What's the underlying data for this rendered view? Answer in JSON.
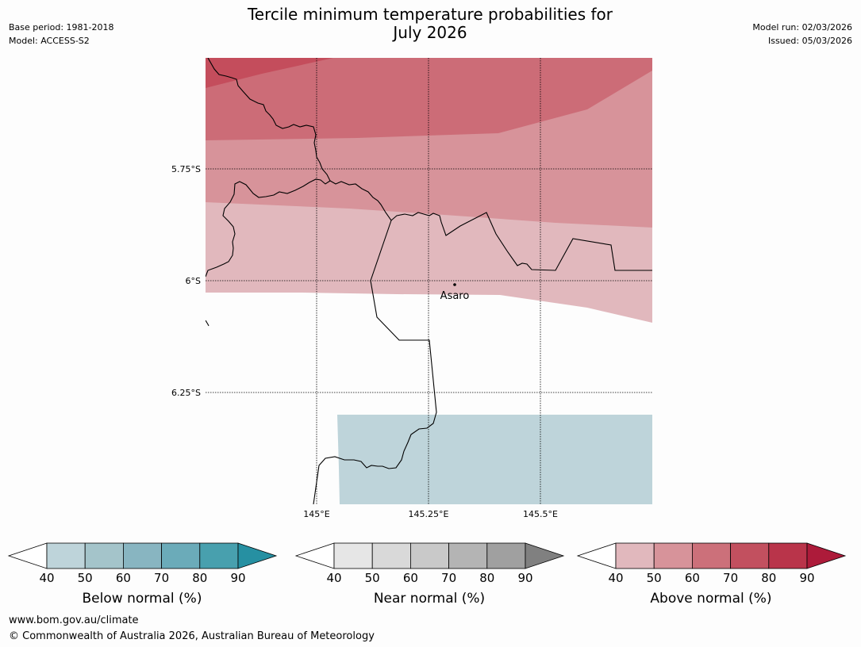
{
  "title_line1": "Tercile minimum temperature probabilities for",
  "title_line2": "July 2026",
  "base_period": "Base period: 1981-2018",
  "model": "Model: ACCESS-S2",
  "model_run": "Model run: 02/03/2026",
  "issued": "Issued: 05/03/2026",
  "map": {
    "lat_labels": [
      "5.75°S",
      "6°S",
      "6.25°S"
    ],
    "lon_labels": [
      "145°E",
      "145.25°E",
      "145.5°E"
    ],
    "place": {
      "name": "Asaro"
    }
  },
  "colorbars": [
    {
      "name": "below",
      "title": "Below normal (%)",
      "ticks": [
        "40",
        "50",
        "60",
        "70",
        "80",
        "90"
      ],
      "colors": [
        "#ffffff",
        "#bed4da",
        "#a4c4ca",
        "#88b5c1",
        "#6babb9",
        "#48a0ae",
        "#2690a2"
      ]
    },
    {
      "name": "near",
      "title": "Near normal (%)",
      "ticks": [
        "40",
        "50",
        "60",
        "70",
        "80",
        "90"
      ],
      "colors": [
        "#ffffff",
        "#e6e6e6",
        "#d9d9d9",
        "#c9c9c9",
        "#b4b4b4",
        "#a0a0a0",
        "#808080"
      ]
    },
    {
      "name": "above",
      "title": "Above normal (%)",
      "ticks": [
        "40",
        "50",
        "60",
        "70",
        "80",
        "90"
      ],
      "colors": [
        "#ffffff",
        "#e1b8bd",
        "#d7939a",
        "#cc707a",
        "#c2505f",
        "#b9344a",
        "#ad1b3a"
      ]
    }
  ],
  "footer_url": "www.bom.gov.au/climate",
  "footer_copyright": "© Commonwealth of Australia 2026, Australian Bureau of Meteorology"
}
